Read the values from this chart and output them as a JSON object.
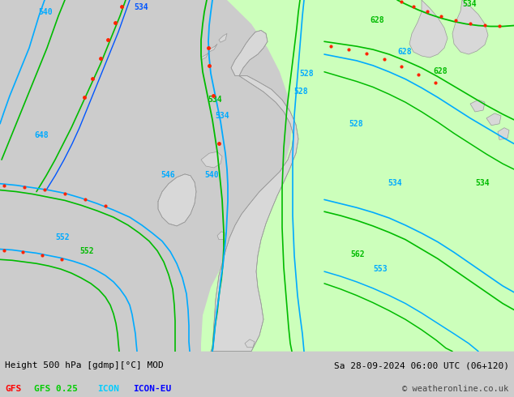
{
  "title_left": "Height 500 hPa [gdmp][°C] MOD",
  "title_right": "Sa 28-09-2024 06:00 UTC (06+120)",
  "copyright": "© weatheronline.co.uk",
  "legend": [
    {
      "label": "GFS",
      "color": "#FF0000"
    },
    {
      "label": "GFS 0.25",
      "color": "#00CC00"
    },
    {
      "label": "ICON",
      "color": "#00CCFF"
    },
    {
      "label": "ICON-EU",
      "color": "#0000FF"
    }
  ],
  "bg_color": "#CCCCCC",
  "land_color": "#CCCCCC",
  "sea_color": "#CCCCCC",
  "green_fill": "#CCFFBB",
  "footer_bg": "#DDDDDD",
  "line_cyan": "#00AAFF",
  "line_green": "#00BB00",
  "line_red": "#FF2200",
  "figsize": [
    6.34,
    4.9
  ],
  "dpi": 100
}
